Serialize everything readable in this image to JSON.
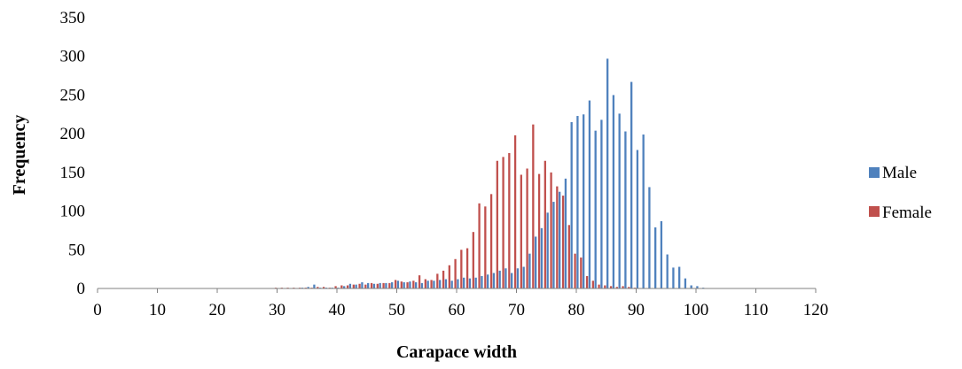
{
  "chart_data": {
    "type": "bar",
    "xlabel": "Carapace width",
    "ylabel": "Frequency",
    "xlim": [
      0,
      120
    ],
    "ylim": [
      0,
      350
    ],
    "x_ticks": [
      "0",
      "10",
      "20",
      "30",
      "40",
      "50",
      "60",
      "70",
      "80",
      "90",
      "100",
      "110",
      "120"
    ],
    "y_ticks": [
      "0",
      "50",
      "100",
      "150",
      "200",
      "250",
      "300",
      "350"
    ],
    "grid": false,
    "legend_position": "right",
    "series": [
      {
        "name": "Male",
        "color": "#4F81BD",
        "x": [
          0,
          1,
          2,
          3,
          4,
          5,
          6,
          7,
          8,
          9,
          10,
          11,
          12,
          13,
          14,
          15,
          16,
          17,
          18,
          19,
          20,
          21,
          22,
          23,
          24,
          25,
          26,
          27,
          28,
          29,
          30,
          31,
          32,
          33,
          34,
          35,
          36,
          37,
          38,
          39,
          40,
          41,
          42,
          43,
          44,
          45,
          46,
          47,
          48,
          49,
          50,
          51,
          52,
          53,
          54,
          55,
          56,
          57,
          58,
          59,
          60,
          61,
          62,
          63,
          64,
          65,
          66,
          67,
          68,
          69,
          70,
          71,
          72,
          73,
          74,
          75,
          76,
          77,
          78,
          79,
          80,
          81,
          82,
          83,
          84,
          85,
          86,
          87,
          88,
          89,
          90,
          91,
          92,
          93,
          94,
          95,
          96,
          97,
          98,
          99,
          100,
          101,
          102,
          103,
          104,
          105,
          106,
          107,
          108,
          109,
          110,
          111,
          112,
          113,
          114,
          115,
          116,
          117,
          118,
          119,
          120
        ],
        "values": [
          0,
          0,
          0,
          0,
          0,
          0,
          0,
          0,
          0,
          0,
          0,
          0,
          0,
          0,
          0,
          0,
          0,
          0,
          0,
          0,
          0,
          0,
          0,
          0,
          0,
          0,
          0,
          0,
          0,
          0,
          0,
          0,
          0,
          0,
          1,
          2,
          5,
          1,
          1,
          1,
          1,
          3,
          6,
          5,
          8,
          7,
          6,
          7,
          7,
          8,
          10,
          8,
          9,
          8,
          7,
          10,
          10,
          11,
          12,
          10,
          12,
          14,
          13,
          14,
          16,
          18,
          20,
          23,
          26,
          20,
          26,
          28,
          45,
          67,
          78,
          98,
          112,
          125,
          142,
          215,
          223,
          225,
          243,
          204,
          218,
          297,
          250,
          226,
          203,
          267,
          179,
          199,
          131,
          79,
          87,
          44,
          27,
          28,
          13,
          4,
          3,
          1,
          0,
          0,
          0,
          0,
          0,
          0,
          0,
          0,
          0,
          0,
          0,
          0,
          0,
          0,
          0,
          0,
          0,
          0,
          0
        ]
      },
      {
        "name": "Female",
        "color": "#C0504D",
        "x": [
          0,
          1,
          2,
          3,
          4,
          5,
          6,
          7,
          8,
          9,
          10,
          11,
          12,
          13,
          14,
          15,
          16,
          17,
          18,
          19,
          20,
          21,
          22,
          23,
          24,
          25,
          26,
          27,
          28,
          29,
          30,
          31,
          32,
          33,
          34,
          35,
          36,
          37,
          38,
          39,
          40,
          41,
          42,
          43,
          44,
          45,
          46,
          47,
          48,
          49,
          50,
          51,
          52,
          53,
          54,
          55,
          56,
          57,
          58,
          59,
          60,
          61,
          62,
          63,
          64,
          65,
          66,
          67,
          68,
          69,
          70,
          71,
          72,
          73,
          74,
          75,
          76,
          77,
          78,
          79,
          80,
          81,
          82,
          83,
          84,
          85,
          86,
          87,
          88,
          89,
          90,
          91,
          92,
          93,
          94,
          95,
          96,
          97,
          98,
          99,
          100,
          101,
          102,
          103,
          104,
          105,
          106,
          107,
          108,
          109,
          110,
          111,
          112,
          113,
          114,
          115,
          116,
          117,
          118,
          119,
          120
        ],
        "values": [
          0,
          0,
          0,
          0,
          0,
          0,
          0,
          0,
          0,
          0,
          0,
          0,
          0,
          0,
          0,
          0,
          0,
          0,
          0,
          0,
          0,
          0,
          0,
          0,
          0,
          0,
          0,
          0,
          0,
          0,
          1,
          1,
          1,
          1,
          1,
          1,
          1,
          2,
          2,
          1,
          3,
          4,
          4,
          5,
          6,
          5,
          7,
          6,
          7,
          7,
          11,
          9,
          8,
          10,
          17,
          12,
          11,
          19,
          23,
          30,
          38,
          50,
          52,
          73,
          110,
          106,
          122,
          165,
          170,
          175,
          198,
          147,
          155,
          212,
          148,
          165,
          150,
          132,
          120,
          82,
          45,
          40,
          16,
          10,
          5,
          4,
          3,
          2,
          3,
          2,
          1,
          0,
          0,
          0,
          0,
          0,
          0,
          0,
          0,
          0,
          0,
          0,
          0,
          0,
          0,
          0,
          0,
          0,
          0,
          0,
          0,
          0,
          0,
          0,
          0,
          0,
          0,
          0,
          0,
          0,
          0
        ]
      }
    ]
  }
}
